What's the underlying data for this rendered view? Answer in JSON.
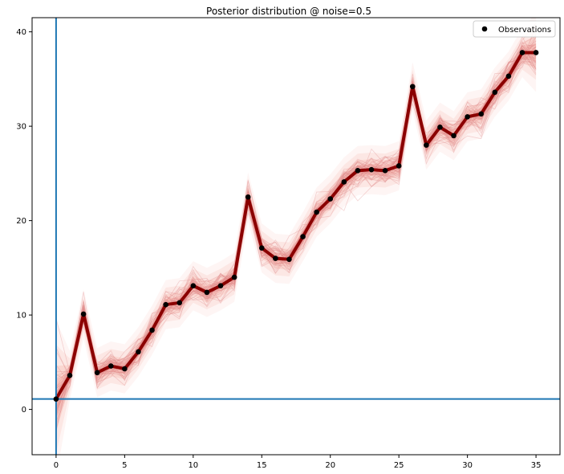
{
  "chart_data": {
    "type": "line",
    "title": "Posterior distribution @ noise=0.5",
    "xlabel": "",
    "ylabel": "",
    "xlim": [
      -1.75,
      36.75
    ],
    "ylim": [
      -4.8,
      41.5
    ],
    "xticks": [
      0,
      5,
      10,
      15,
      20,
      25,
      30,
      35
    ],
    "yticks": [
      0,
      10,
      20,
      30,
      40
    ],
    "grid": false,
    "legend": {
      "placement": "top-right",
      "entries": [
        "Observations"
      ]
    },
    "series": [
      {
        "name": "Observations",
        "kind": "scatter",
        "color": "#000000",
        "x": [
          0,
          1,
          2,
          3,
          4,
          5,
          6,
          7,
          8,
          9,
          10,
          11,
          12,
          13,
          14,
          15,
          16,
          17,
          18,
          19,
          20,
          21,
          22,
          23,
          24,
          25,
          26,
          27,
          28,
          29,
          30,
          31,
          32,
          33,
          34,
          35
        ],
        "y": [
          1.1,
          3.6,
          10.1,
          3.9,
          4.6,
          4.3,
          6.1,
          8.4,
          11.1,
          11.3,
          13.1,
          12.4,
          13.1,
          14.0,
          22.5,
          17.1,
          16.0,
          15.9,
          18.3,
          20.9,
          22.3,
          24.1,
          25.3,
          25.4,
          25.3,
          25.8,
          34.2,
          28.0,
          29.9,
          29.0,
          31.0,
          31.3,
          33.6,
          35.3,
          37.8,
          37.8
        ]
      }
    ],
    "reference_lines": {
      "vertical_x": 0,
      "horizontal_y": 1.1,
      "color": "#1f77b4"
    },
    "posterior": {
      "mean_color": "#8b0000",
      "band_color": "#f08070",
      "sample_color": "#e08a8a"
    }
  }
}
